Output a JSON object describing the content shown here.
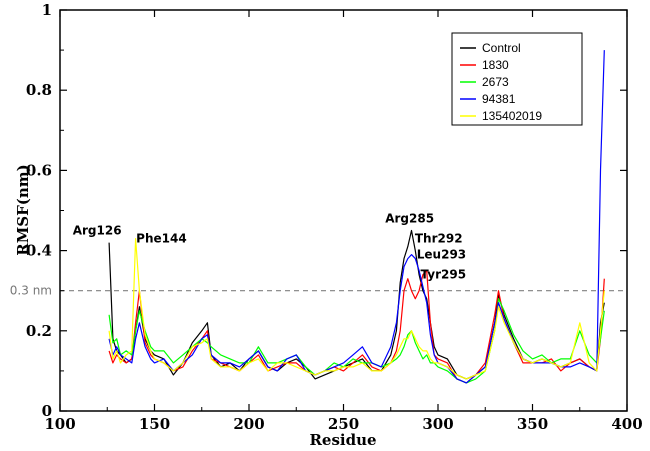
{
  "chart_data": {
    "type": "line",
    "xlabel": "Residue",
    "ylabel": "RMSF(nm)",
    "xlim": [
      100,
      400
    ],
    "ylim": [
      0,
      1
    ],
    "xticks": [
      100,
      150,
      200,
      250,
      300,
      350,
      400
    ],
    "yticks": [
      0,
      0.2,
      0.4,
      0.6,
      0.8,
      1
    ],
    "tick_labels_y": [
      "0",
      "0.2",
      "0.4",
      "0.6",
      "0.8",
      "1"
    ],
    "grid": false,
    "legend_position": "top-right",
    "reference_line": {
      "y": 0.3,
      "label": "0.3 nm",
      "color": "#808080"
    },
    "annotations": [
      {
        "text": "Arg126",
        "x": 126,
        "y": 0.44
      },
      {
        "text": "Phe144",
        "x": 144,
        "y": 0.42
      },
      {
        "text": "Arg285",
        "x": 285,
        "y": 0.47
      },
      {
        "text": "Thr292",
        "x": 292,
        "y": 0.42
      },
      {
        "text": "Leu293",
        "x": 293,
        "y": 0.38
      },
      {
        "text": "Tyr295",
        "x": 295,
        "y": 0.33
      }
    ],
    "x": [
      126,
      128,
      130,
      132,
      135,
      138,
      140,
      142,
      145,
      148,
      150,
      155,
      160,
      165,
      170,
      175,
      178,
      180,
      185,
      190,
      195,
      200,
      205,
      210,
      215,
      220,
      225,
      230,
      235,
      240,
      245,
      250,
      255,
      260,
      265,
      270,
      275,
      278,
      280,
      282,
      284,
      286,
      288,
      290,
      292,
      294,
      296,
      298,
      300,
      305,
      310,
      315,
      320,
      325,
      330,
      332,
      335,
      340,
      345,
      350,
      355,
      360,
      365,
      370,
      375,
      380,
      384,
      386,
      388
    ],
    "series": [
      {
        "name": "Control",
        "color": "#000000",
        "values": [
          0.42,
          0.18,
          0.15,
          0.14,
          0.12,
          0.13,
          0.2,
          0.26,
          0.18,
          0.15,
          0.14,
          0.13,
          0.09,
          0.12,
          0.17,
          0.2,
          0.22,
          0.14,
          0.11,
          0.12,
          0.1,
          0.13,
          0.15,
          0.11,
          0.1,
          0.12,
          0.13,
          0.11,
          0.08,
          0.09,
          0.1,
          0.11,
          0.12,
          0.13,
          0.1,
          0.1,
          0.14,
          0.2,
          0.32,
          0.38,
          0.41,
          0.45,
          0.4,
          0.34,
          0.3,
          0.28,
          0.22,
          0.16,
          0.14,
          0.13,
          0.09,
          0.08,
          0.09,
          0.11,
          0.22,
          0.29,
          0.24,
          0.18,
          0.13,
          0.12,
          0.13,
          0.12,
          0.11,
          0.12,
          0.13,
          0.11,
          0.1,
          0.22,
          0.27
        ]
      },
      {
        "name": "1830",
        "color": "#ff0000",
        "values": [
          0.15,
          0.12,
          0.14,
          0.13,
          0.12,
          0.13,
          0.22,
          0.3,
          0.17,
          0.14,
          0.13,
          0.12,
          0.1,
          0.11,
          0.15,
          0.18,
          0.2,
          0.13,
          0.12,
          0.11,
          0.1,
          0.12,
          0.14,
          0.1,
          0.11,
          0.12,
          0.12,
          0.1,
          0.09,
          0.1,
          0.11,
          0.1,
          0.12,
          0.14,
          0.11,
          0.1,
          0.12,
          0.15,
          0.2,
          0.3,
          0.33,
          0.3,
          0.28,
          0.3,
          0.34,
          0.35,
          0.22,
          0.14,
          0.13,
          0.12,
          0.08,
          0.07,
          0.09,
          0.12,
          0.24,
          0.3,
          0.23,
          0.17,
          0.12,
          0.12,
          0.12,
          0.13,
          0.1,
          0.12,
          0.13,
          0.11,
          0.1,
          0.18,
          0.33
        ]
      },
      {
        "name": "2673",
        "color": "#00ff00",
        "values": [
          0.24,
          0.17,
          0.18,
          0.14,
          0.15,
          0.14,
          0.2,
          0.25,
          0.2,
          0.16,
          0.15,
          0.15,
          0.12,
          0.14,
          0.16,
          0.18,
          0.17,
          0.16,
          0.14,
          0.13,
          0.12,
          0.12,
          0.16,
          0.12,
          0.12,
          0.13,
          0.14,
          0.11,
          0.09,
          0.1,
          0.12,
          0.11,
          0.13,
          0.12,
          0.12,
          0.11,
          0.12,
          0.13,
          0.14,
          0.16,
          0.19,
          0.2,
          0.17,
          0.15,
          0.13,
          0.14,
          0.12,
          0.12,
          0.11,
          0.1,
          0.08,
          0.07,
          0.08,
          0.1,
          0.2,
          0.28,
          0.25,
          0.19,
          0.15,
          0.13,
          0.14,
          0.12,
          0.13,
          0.13,
          0.2,
          0.14,
          0.12,
          0.18,
          0.25
        ]
      },
      {
        "name": "94381",
        "color": "#0000ff",
        "values": [
          0.18,
          0.14,
          0.16,
          0.14,
          0.13,
          0.12,
          0.18,
          0.22,
          0.16,
          0.13,
          0.12,
          0.13,
          0.1,
          0.12,
          0.14,
          0.18,
          0.19,
          0.14,
          0.12,
          0.12,
          0.11,
          0.13,
          0.15,
          0.11,
          0.1,
          0.13,
          0.14,
          0.1,
          0.09,
          0.1,
          0.11,
          0.12,
          0.14,
          0.16,
          0.12,
          0.11,
          0.16,
          0.22,
          0.3,
          0.36,
          0.38,
          0.39,
          0.38,
          0.35,
          0.31,
          0.27,
          0.19,
          0.14,
          0.12,
          0.11,
          0.08,
          0.07,
          0.09,
          0.11,
          0.22,
          0.27,
          0.23,
          0.17,
          0.13,
          0.12,
          0.12,
          0.12,
          0.11,
          0.11,
          0.12,
          0.11,
          0.1,
          0.6,
          0.9
        ]
      },
      {
        "name": "135402019",
        "color": "#ffff00",
        "values": [
          0.2,
          0.13,
          0.15,
          0.12,
          0.14,
          0.15,
          0.43,
          0.3,
          0.19,
          0.15,
          0.13,
          0.12,
          0.1,
          0.12,
          0.16,
          0.17,
          0.18,
          0.13,
          0.11,
          0.11,
          0.1,
          0.12,
          0.13,
          0.1,
          0.12,
          0.12,
          0.11,
          0.1,
          0.09,
          0.1,
          0.1,
          0.11,
          0.11,
          0.12,
          0.1,
          0.1,
          0.12,
          0.14,
          0.16,
          0.18,
          0.18,
          0.2,
          0.18,
          0.16,
          0.15,
          0.15,
          0.13,
          0.12,
          0.12,
          0.11,
          0.09,
          0.08,
          0.09,
          0.1,
          0.2,
          0.26,
          0.22,
          0.17,
          0.13,
          0.12,
          0.13,
          0.12,
          0.11,
          0.12,
          0.22,
          0.12,
          0.1,
          0.2,
          0.3
        ]
      }
    ]
  }
}
